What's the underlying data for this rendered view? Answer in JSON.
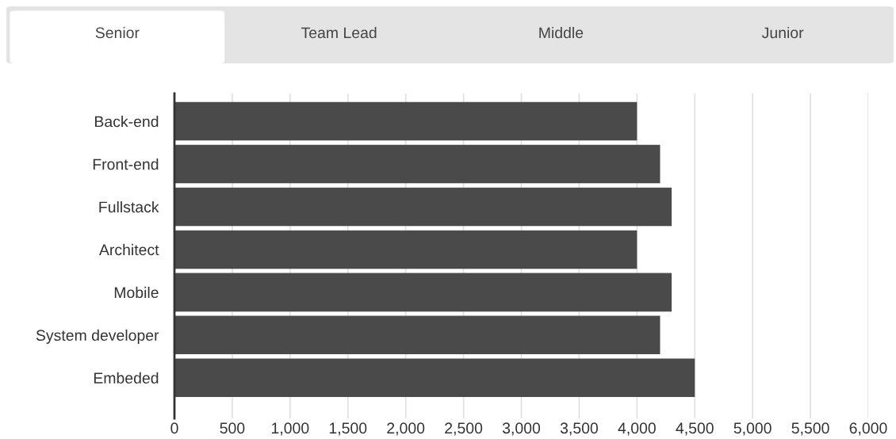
{
  "chart_data": {
    "type": "bar",
    "orientation": "horizontal",
    "categories": [
      "Back-end",
      "Front-end",
      "Fullstack",
      "Architect",
      "Mobile",
      "System developer",
      "Embeded"
    ],
    "values": [
      4000,
      4200,
      4300,
      4000,
      4300,
      4200,
      4500
    ],
    "color": "#4a4a4a",
    "xlim": [
      0,
      6000
    ],
    "xticks": [
      0,
      500,
      {
        "value": 1000,
        "label": "1,000"
      },
      {
        "value": 1500,
        "label": "1,500"
      },
      {
        "value": 2000,
        "label": "2,000"
      },
      {
        "value": 2500,
        "label": "2,500"
      },
      {
        "value": 3000,
        "label": "3,000"
      },
      {
        "value": 3500,
        "label": "3,500"
      },
      {
        "value": 4000,
        "label": "4,000"
      },
      {
        "value": 4500,
        "label": "4,500"
      },
      {
        "value": 5000,
        "label": "5,000"
      },
      {
        "value": 5500,
        "label": "5,500"
      },
      {
        "value": 6000,
        "label": "6,000"
      }
    ],
    "grid": "x",
    "annotations": [
      "Senior",
      "Team Lead",
      "Middle",
      "Junior"
    ]
  }
}
